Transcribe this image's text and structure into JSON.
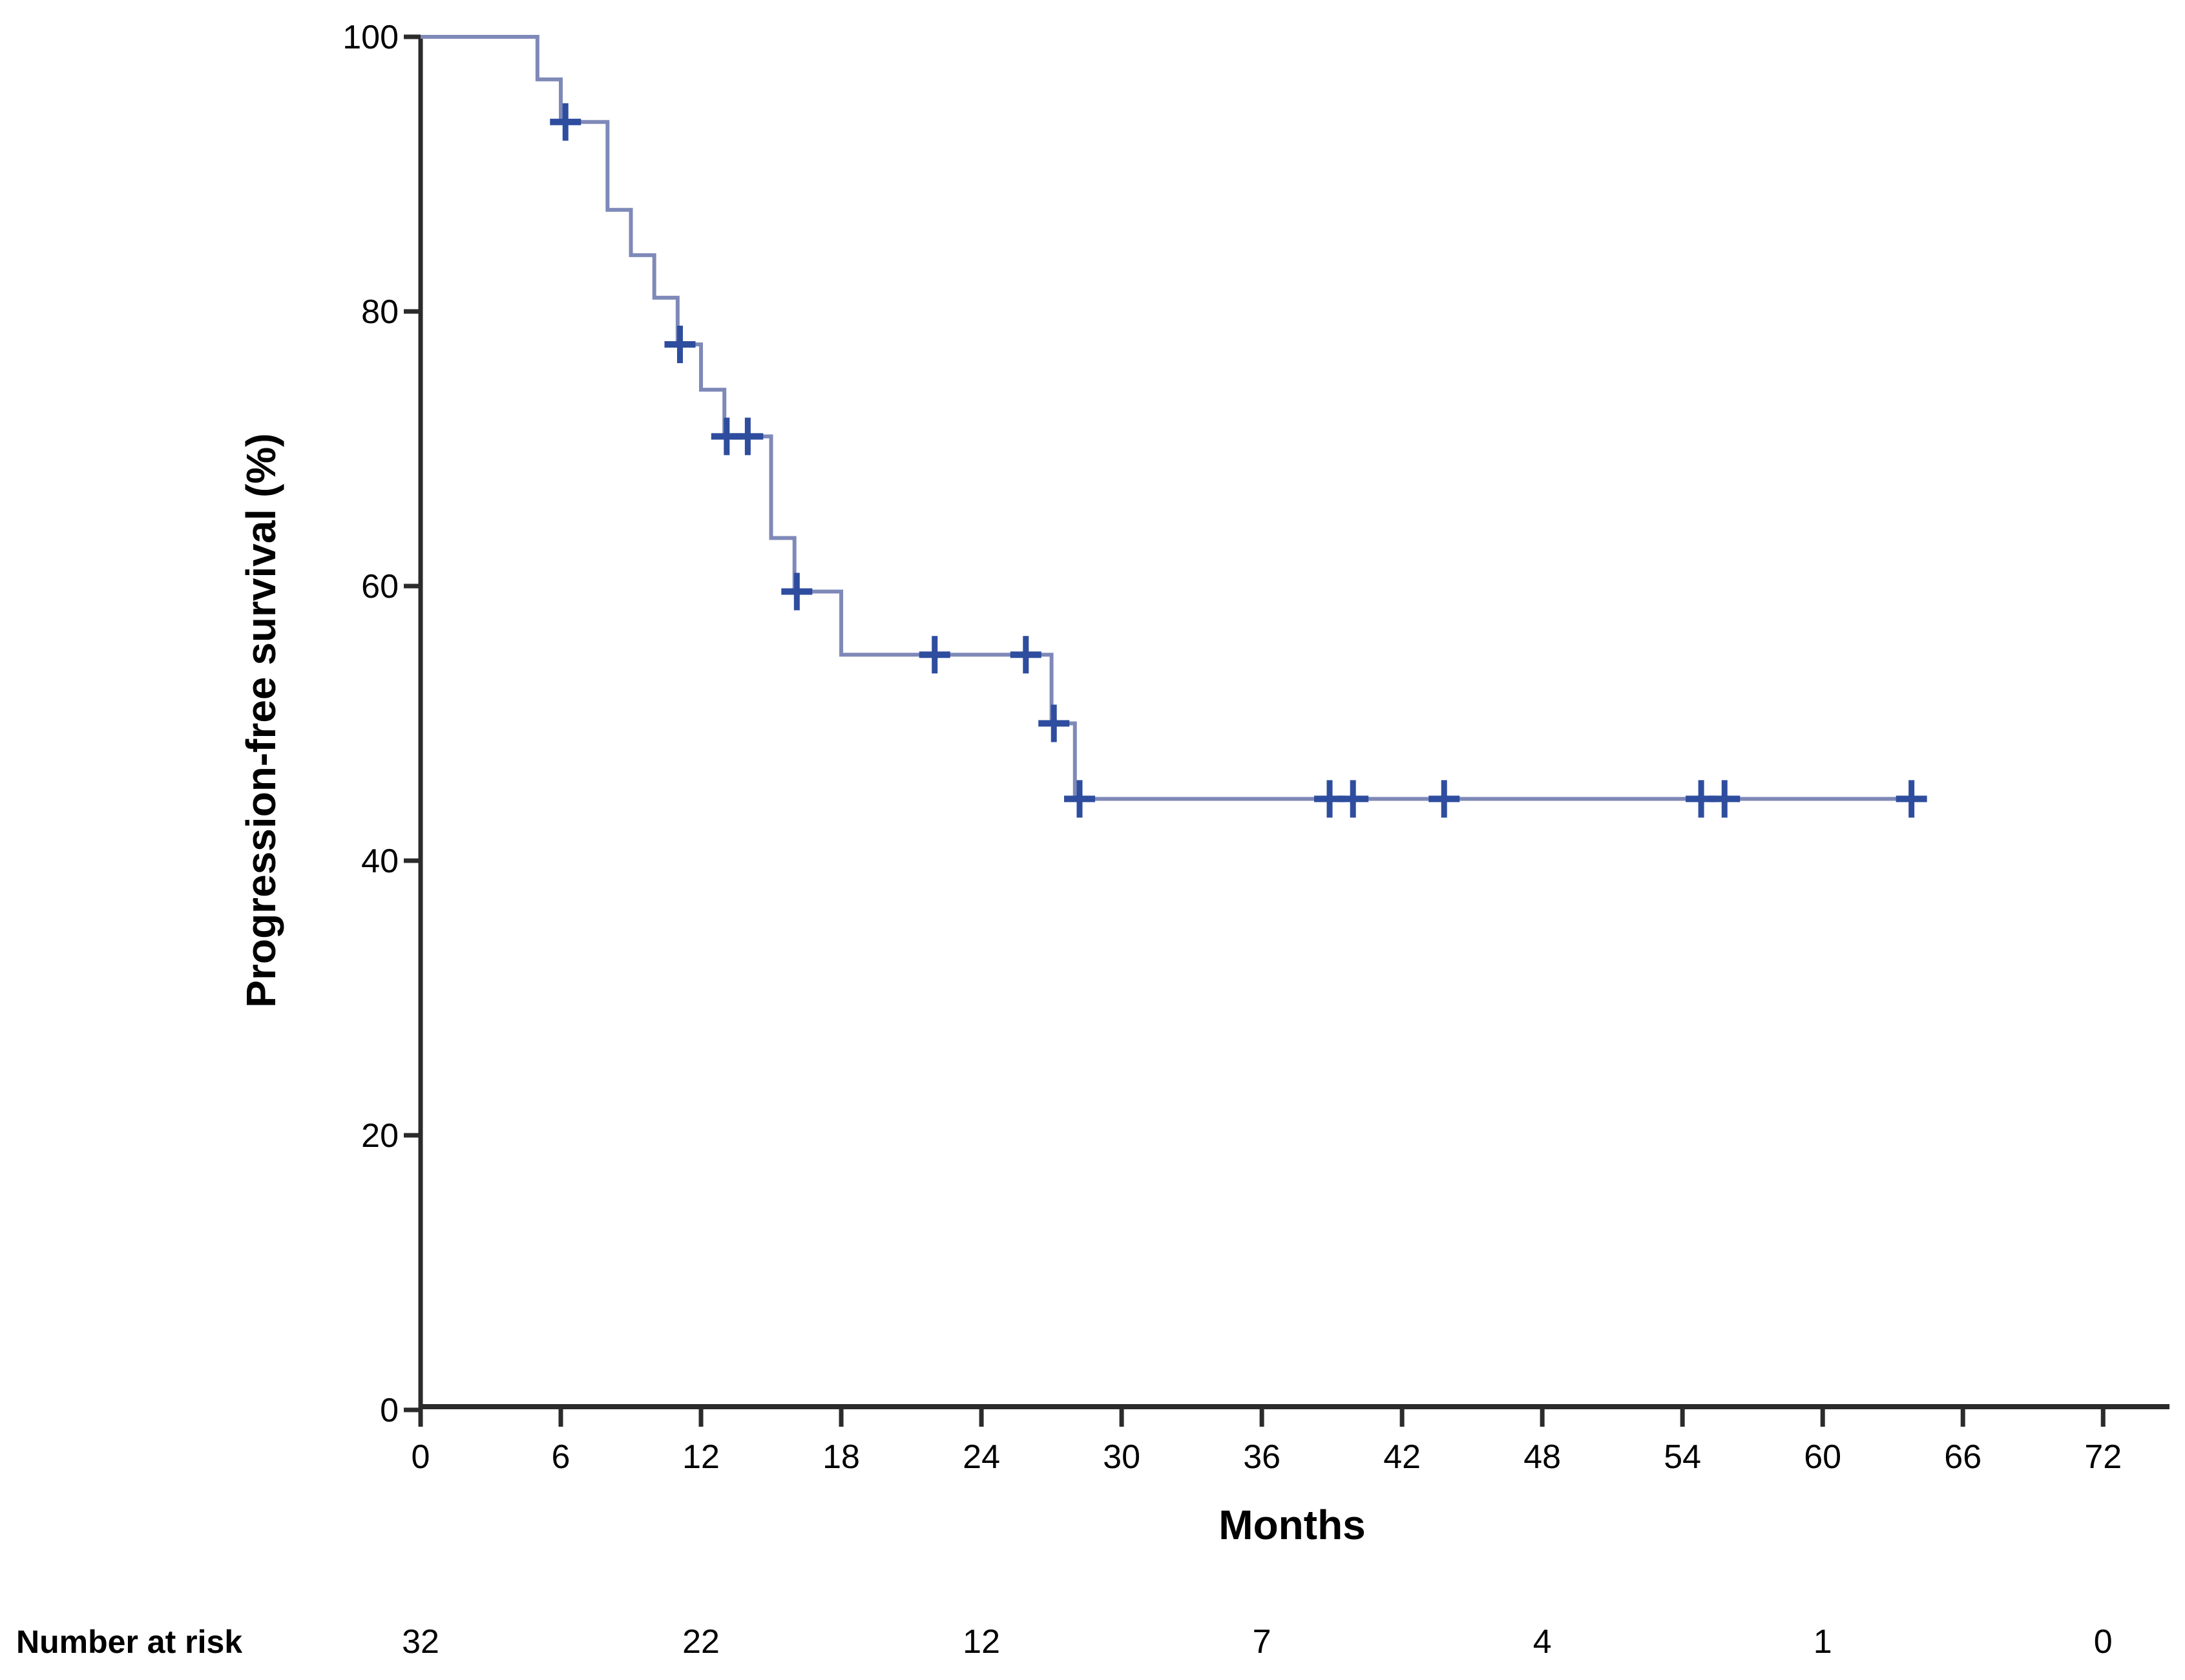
{
  "chart_data": {
    "type": "line",
    "subtype": "kaplan-meier-step-curve",
    "title": "",
    "xlabel": "Months",
    "ylabel": "Progression-free survival (%)",
    "xlim": [
      0,
      72
    ],
    "ylim": [
      0,
      100
    ],
    "x_ticks": [
      0,
      6,
      12,
      18,
      24,
      30,
      36,
      42,
      48,
      54,
      60,
      66,
      72
    ],
    "y_ticks": [
      0,
      20,
      40,
      60,
      80,
      100
    ],
    "grid": false,
    "legend_position": "none",
    "series": [
      {
        "name": "Progression-free survival",
        "start_time": 0,
        "start_survival_pct": 100,
        "drops_time_vs_survival_pct": [
          [
            5,
            96.9
          ],
          [
            6,
            93.8
          ],
          [
            8,
            87.4
          ],
          [
            9,
            84.1
          ],
          [
            10,
            81.0
          ],
          [
            11,
            77.6
          ],
          [
            12,
            74.3
          ],
          [
            13,
            70.9
          ],
          [
            15,
            63.5
          ],
          [
            16,
            59.6
          ],
          [
            18,
            55.0
          ],
          [
            27,
            50.0
          ],
          [
            28,
            44.5
          ]
        ],
        "end_time": 64.2,
        "end_survival_pct": 44.5,
        "censor_marks_time_vs_survival_pct": [
          [
            6.2,
            93.8
          ],
          [
            11.1,
            77.6
          ],
          [
            13.1,
            70.9
          ],
          [
            14.0,
            70.9
          ],
          [
            16.1,
            59.6
          ],
          [
            22.0,
            55.0
          ],
          [
            25.9,
            55.0
          ],
          [
            27.1,
            50.0
          ],
          [
            28.2,
            44.5
          ],
          [
            38.9,
            44.5
          ],
          [
            39.9,
            44.5
          ],
          [
            43.8,
            44.5
          ],
          [
            54.8,
            44.5
          ],
          [
            55.8,
            44.5
          ],
          [
            63.8,
            44.5
          ]
        ]
      }
    ],
    "colors": {
      "curve": "#7f89b8",
      "censor": "#2e4d9e",
      "axis": "#2b2b2b",
      "text": "#000000"
    }
  },
  "risk_table": {
    "label": "Number at risk",
    "times": [
      0,
      12,
      24,
      36,
      48,
      60,
      72
    ],
    "values": [
      32,
      22,
      12,
      7,
      4,
      1,
      0
    ]
  }
}
